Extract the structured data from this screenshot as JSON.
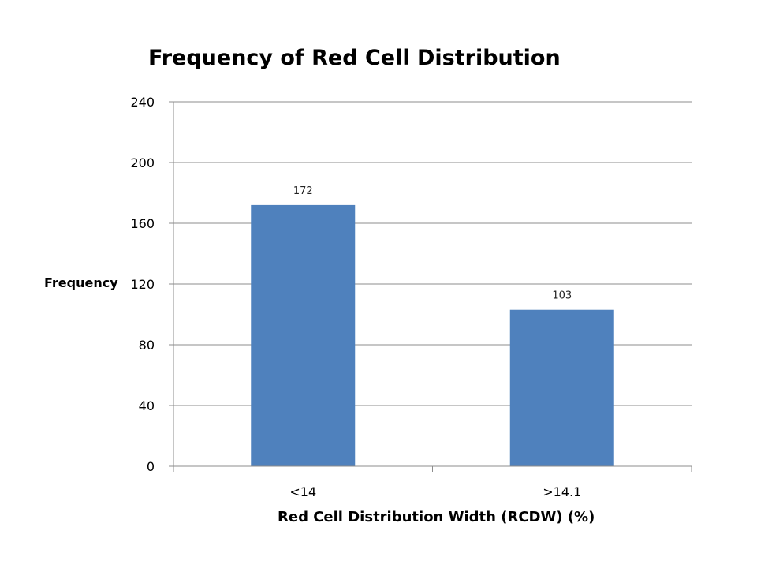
{
  "chart_data": {
    "type": "bar",
    "title": "Frequency of Red Cell Distribution",
    "xlabel": "Red Cell Distribution Width (RCDW) (%)",
    "ylabel": "Frequency",
    "categories": [
      "<14",
      ">14.1"
    ],
    "values": [
      172,
      103
    ],
    "data_labels": [
      "172",
      "103"
    ],
    "ylim": [
      0,
      240
    ],
    "yticks": [
      "0",
      "40",
      "80",
      "120",
      "160",
      "200",
      "240"
    ],
    "ytick_values": [
      0,
      40,
      80,
      120,
      160,
      200,
      240
    ],
    "grid": true,
    "legend": "none",
    "bar_color": "#4F81BD"
  }
}
